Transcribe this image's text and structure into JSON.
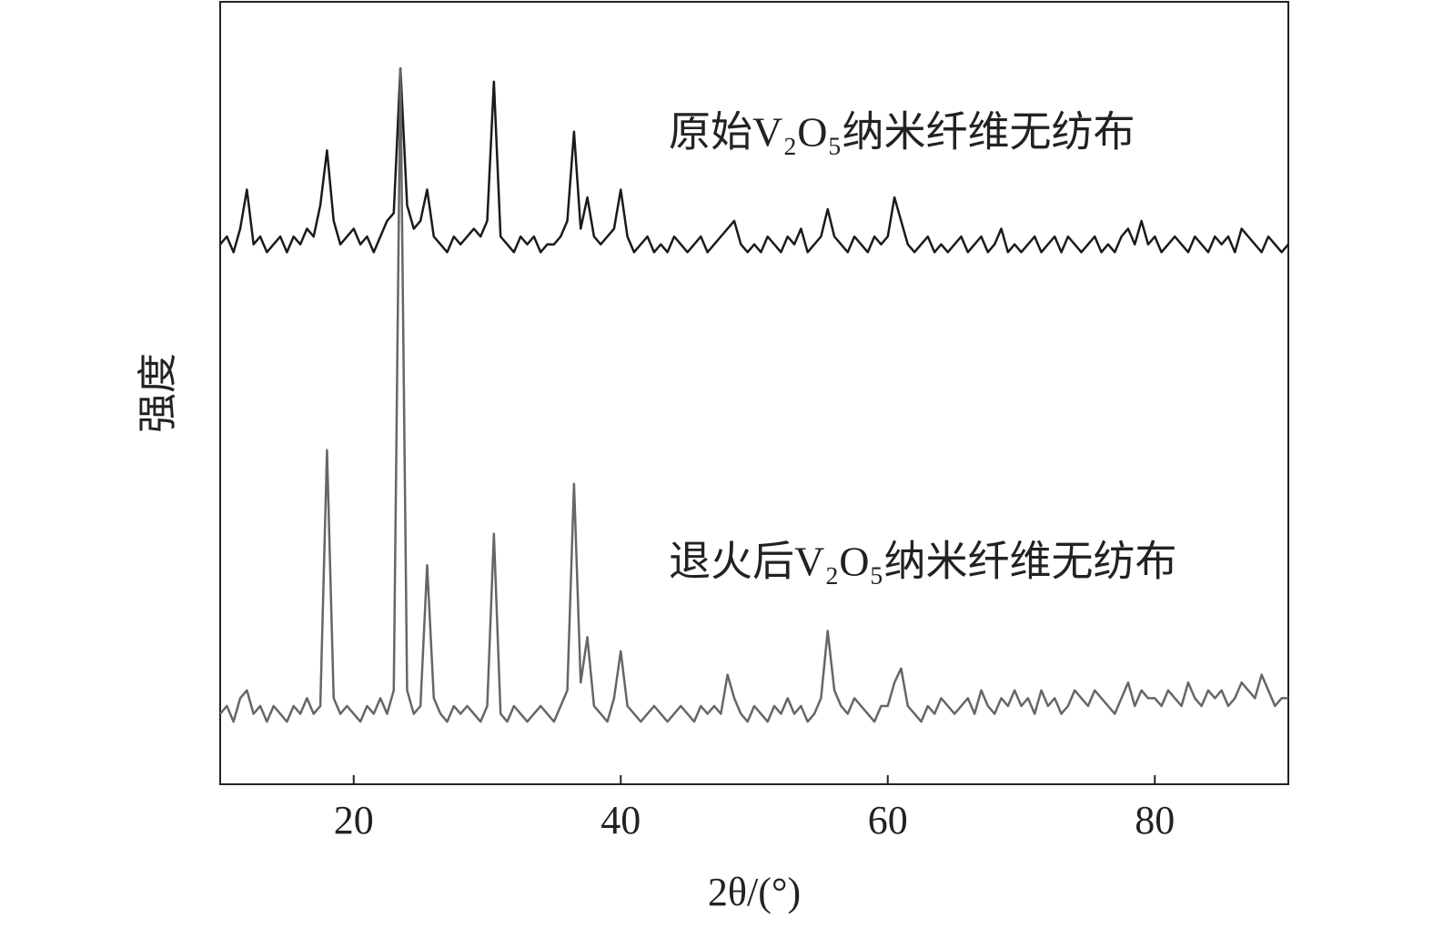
{
  "chart_data": {
    "type": "line",
    "xlabel": "2θ/(°)",
    "ylabel": "强度",
    "annotations": [
      "原始V₂O₅纳米纤维无纺布",
      "退火后V₂O₅纳米纤维无纺布"
    ],
    "xlim": [
      10,
      90
    ],
    "xticks": [
      20,
      40,
      60,
      80
    ],
    "ylim": [
      0,
      100
    ],
    "x": [
      10,
      10.5,
      11,
      11.5,
      12,
      12.5,
      13,
      13.5,
      14,
      14.5,
      15,
      15.5,
      16,
      16.5,
      17,
      17.5,
      18,
      18.5,
      19,
      19.5,
      20,
      20.5,
      21,
      21.5,
      22,
      22.5,
      23,
      23.5,
      24,
      24.5,
      25,
      25.5,
      26,
      26.5,
      27,
      27.5,
      28,
      28.5,
      29,
      29.5,
      30,
      30.5,
      31,
      31.5,
      32,
      32.5,
      33,
      33.5,
      34,
      34.5,
      35,
      35.5,
      36,
      36.5,
      37,
      37.5,
      38,
      38.5,
      39,
      39.5,
      40,
      40.5,
      41,
      41.5,
      42,
      42.5,
      43,
      43.5,
      44,
      44.5,
      45,
      45.5,
      46,
      46.5,
      47,
      47.5,
      48,
      48.5,
      49,
      49.5,
      50,
      50.5,
      51,
      51.5,
      52,
      52.5,
      53,
      53.5,
      54,
      54.5,
      55,
      55.5,
      56,
      56.5,
      57,
      57.5,
      58,
      58.5,
      59,
      59.5,
      60,
      60.5,
      61,
      61.5,
      62,
      62.5,
      63,
      63.5,
      64,
      64.5,
      65,
      65.5,
      66,
      66.5,
      67,
      67.5,
      68,
      68.5,
      69,
      69.5,
      70,
      70.5,
      71,
      71.5,
      72,
      72.5,
      73,
      73.5,
      74,
      74.5,
      75,
      75.5,
      76,
      76.5,
      77,
      77.5,
      78,
      78.5,
      79,
      79.5,
      80,
      80.5,
      81,
      81.5,
      82,
      82.5,
      83,
      83.5,
      84,
      84.5,
      85,
      85.5,
      86,
      86.5,
      87,
      87.5,
      88,
      88.5,
      89,
      89.5,
      90
    ],
    "series": [
      {
        "color": "#1a1a1a",
        "values": [
          69,
          70,
          68,
          71,
          76,
          69,
          70,
          68,
          69,
          70,
          68,
          70,
          69,
          71,
          70,
          74,
          81,
          72,
          69,
          70,
          71,
          69,
          70,
          68,
          70,
          72,
          73,
          91.5,
          74,
          71,
          72,
          76,
          70,
          69,
          68,
          70,
          69,
          70,
          71,
          70,
          72,
          89.8,
          70,
          69,
          68,
          70,
          69,
          70,
          68,
          69,
          69,
          70,
          72,
          83.4,
          71,
          75,
          70,
          69,
          70,
          71,
          76,
          70,
          68,
          69,
          70,
          68,
          69,
          68,
          70,
          69,
          68,
          69,
          70,
          68,
          69,
          70,
          71,
          72,
          69,
          68,
          69,
          68,
          70,
          69,
          68,
          70,
          69,
          71,
          68,
          69,
          70,
          73.5,
          70,
          69,
          68,
          70,
          69,
          68,
          70,
          69,
          70,
          75,
          72,
          69,
          68,
          69,
          70,
          68,
          69,
          68,
          69,
          70,
          68,
          69,
          70,
          68,
          69,
          71,
          68,
          69,
          68,
          69,
          70,
          68,
          69,
          70,
          68,
          70,
          69,
          68,
          69,
          70,
          68,
          69,
          68,
          70,
          71,
          69,
          72,
          69,
          70,
          68,
          69,
          70,
          69,
          68,
          70,
          69,
          68,
          70,
          69,
          70,
          68,
          71,
          70,
          69,
          68,
          70,
          69,
          68,
          69
        ]
      },
      {
        "color": "#666666",
        "values": [
          9,
          10,
          8,
          11,
          12,
          9,
          10,
          8,
          10,
          9,
          8,
          10,
          9,
          11,
          9,
          10,
          42.7,
          11,
          9,
          10,
          9,
          8,
          10,
          9,
          11,
          9,
          12,
          91.5,
          12,
          9,
          10,
          28,
          11,
          9,
          8,
          10,
          9,
          10,
          9,
          8,
          10,
          32,
          9,
          8,
          10,
          9,
          8,
          9,
          10,
          9,
          8,
          10,
          12,
          38.4,
          13,
          18.8,
          10,
          9,
          8,
          11,
          17,
          10,
          9,
          8,
          9,
          10,
          9,
          8,
          9,
          10,
          9,
          8,
          10,
          9,
          10,
          9,
          14,
          11,
          9,
          8,
          10,
          9,
          8,
          10,
          9,
          11,
          9,
          10,
          8,
          9,
          11,
          19.6,
          12,
          10,
          9,
          11,
          10,
          9,
          8,
          10,
          10,
          13,
          14.8,
          10,
          9,
          8,
          10,
          9,
          11,
          10,
          9,
          10,
          11,
          9,
          12,
          10,
          9,
          11,
          10,
          12,
          10,
          11,
          9,
          12,
          10,
          11,
          9,
          10,
          12,
          11,
          10,
          12,
          11,
          10,
          9,
          11,
          13,
          10,
          12,
          11,
          11,
          10,
          12,
          11,
          10,
          13,
          11,
          10,
          12,
          11,
          12,
          10,
          11,
          13,
          12,
          11,
          14,
          12,
          10,
          11,
          11
        ]
      }
    ]
  }
}
